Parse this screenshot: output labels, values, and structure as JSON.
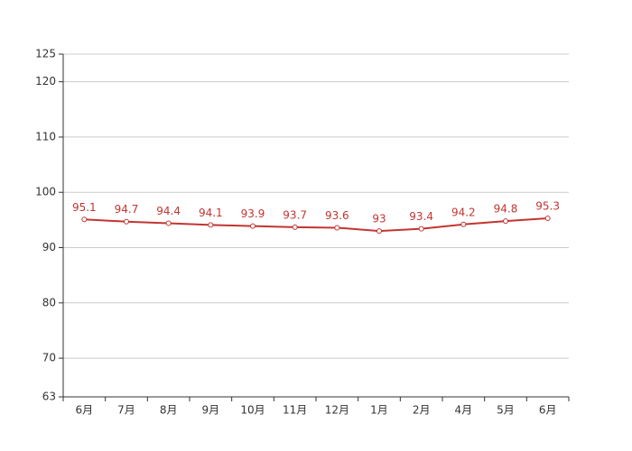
{
  "chart_data": {
    "type": "line",
    "categories": [
      "6月",
      "7月",
      "8月",
      "9月",
      "10月",
      "11月",
      "12月",
      "1月",
      "2月",
      "4月",
      "5月",
      "6月"
    ],
    "values": [
      95.1,
      94.7,
      94.4,
      94.1,
      93.9,
      93.7,
      93.6,
      93,
      93.4,
      94.2,
      94.8,
      95.3
    ],
    "color": "#c23531",
    "ylim": [
      63,
      125
    ],
    "yticks": [
      63,
      70,
      80,
      90,
      100,
      110,
      120,
      125
    ],
    "grid": true
  }
}
